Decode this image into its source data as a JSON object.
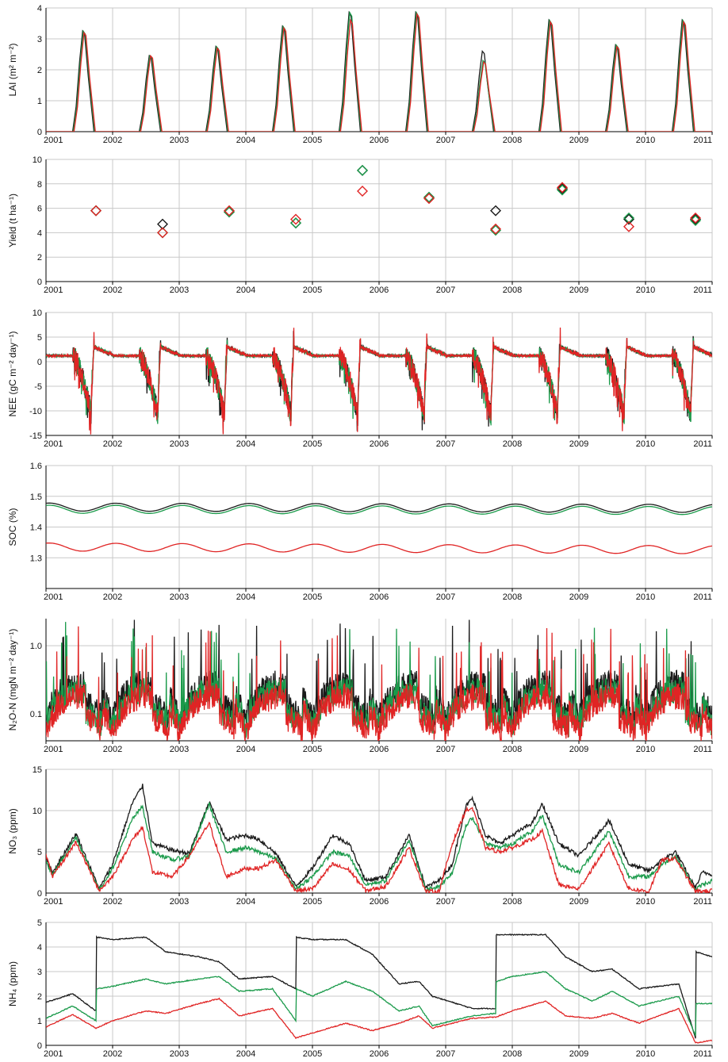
{
  "colors": {
    "black": "#1a1a1a",
    "green": "#1a9a4a",
    "red": "#e02424",
    "grid": "#c8c8c8",
    "axis": "#000000"
  },
  "x_axis": {
    "range": [
      2001,
      2011
    ],
    "tick_labels": [
      "2001",
      "2002",
      "2003",
      "2004",
      "2005",
      "2006",
      "2007",
      "2008",
      "2009",
      "2010",
      "2011"
    ]
  },
  "chart_data": [
    {
      "id": "lai",
      "type": "line",
      "ylabel": "LAI (m² m⁻²)",
      "ylim": [
        0,
        4
      ],
      "yticks": [
        0,
        1,
        2,
        3,
        4
      ],
      "ytick_labels": [
        "0",
        "1",
        "2",
        "3",
        "4"
      ],
      "grid": true,
      "pattern": "lai",
      "peaks": {
        "black": [
          3.25,
          2.45,
          2.75,
          3.4,
          3.85,
          3.85,
          2.6,
          3.6,
          2.8,
          3.6
        ],
        "green": [
          3.25,
          2.45,
          2.75,
          3.4,
          3.85,
          3.85,
          2.3,
          3.6,
          2.8,
          3.6
        ],
        "red": [
          3.2,
          2.45,
          2.7,
          3.35,
          3.6,
          3.8,
          2.25,
          3.55,
          2.75,
          3.55
        ]
      },
      "series": [
        {
          "color_key": "black"
        },
        {
          "color_key": "green"
        },
        {
          "color_key": "red"
        }
      ]
    },
    {
      "id": "yield",
      "type": "scatter",
      "ylabel": "Yield (t ha⁻¹)",
      "ylim": [
        0,
        10
      ],
      "yticks": [
        0,
        2,
        4,
        6,
        8,
        10
      ],
      "ytick_labels": [
        "0",
        "2",
        "4",
        "6",
        "8",
        "10"
      ],
      "grid": true,
      "x": [
        2001.75,
        2002.75,
        2003.75,
        2004.75,
        2005.75,
        2006.75,
        2007.75,
        2008.75,
        2009.75,
        2010.75
      ],
      "series": [
        {
          "color_key": "black",
          "values": [
            5.8,
            4.7,
            5.7,
            4.8,
            9.1,
            6.9,
            5.8,
            7.6,
            5.1,
            5.1
          ]
        },
        {
          "color_key": "green",
          "values": [
            5.8,
            4.0,
            5.7,
            4.8,
            9.1,
            6.9,
            4.2,
            7.5,
            5.2,
            5.0
          ]
        },
        {
          "color_key": "red",
          "values": [
            5.8,
            4.0,
            5.8,
            5.1,
            7.4,
            6.8,
            4.3,
            7.7,
            4.5,
            5.2
          ]
        }
      ]
    },
    {
      "id": "nee",
      "type": "line",
      "ylabel": "NEE (gC m⁻² day⁻¹)",
      "ylim": [
        -15,
        10
      ],
      "yticks": [
        -15,
        -10,
        -5,
        0,
        5,
        10
      ],
      "ytick_labels": [
        "-15",
        "-10",
        "-5",
        "0",
        "5",
        "10"
      ],
      "grid": true,
      "pattern": "nee",
      "series": [
        {
          "color_key": "black"
        },
        {
          "color_key": "green"
        },
        {
          "color_key": "red"
        }
      ]
    },
    {
      "id": "soc",
      "type": "line",
      "ylabel": "SOC (%)",
      "ylim": [
        1.2,
        1.6
      ],
      "yticks": [
        1.3,
        1.4,
        1.5,
        1.6
      ],
      "ytick_labels": [
        "1.3",
        "1.4",
        "1.5",
        "1.6"
      ],
      "grid": true,
      "pattern": "soc",
      "series": [
        {
          "color_key": "black",
          "base": 1.465
        },
        {
          "color_key": "green",
          "base": 1.458
        },
        {
          "color_key": "red",
          "base": 1.335
        }
      ]
    },
    {
      "id": "n2o",
      "type": "line",
      "ylabel": "N₂O-N (mgN m⁻² day⁻¹)",
      "scale": "log",
      "ylim": [
        0.04,
        2.5
      ],
      "yticks": [
        0.1,
        1.0
      ],
      "ytick_labels": [
        "0.1",
        "1.0"
      ],
      "grid": true,
      "pattern": "n2o",
      "series": [
        {
          "color_key": "black"
        },
        {
          "color_key": "green"
        },
        {
          "color_key": "red"
        }
      ]
    },
    {
      "id": "no3",
      "type": "line",
      "ylabel": "NO₃ (ppm)",
      "ylim": [
        0,
        15
      ],
      "yticks": [
        0,
        5,
        10,
        15
      ],
      "ytick_labels": [
        "0",
        "5",
        "10",
        "15"
      ],
      "grid": true,
      "pattern": "no3",
      "series": [
        {
          "color_key": "black",
          "x": [
            2001,
            2001.1,
            2001.45,
            2001.8,
            2002.0,
            2002.3,
            2002.45,
            2002.6,
            2002.9,
            2003.15,
            2003.45,
            2003.7,
            2004.0,
            2004.2,
            2004.45,
            2004.75,
            2005.0,
            2005.3,
            2005.55,
            2005.8,
            2006.1,
            2006.45,
            2006.7,
            2006.9,
            2007.1,
            2007.3,
            2007.4,
            2007.6,
            2007.8,
            2008.0,
            2008.3,
            2008.45,
            2008.7,
            2009.0,
            2009.45,
            2009.75,
            2010.05,
            2010.25,
            2010.45,
            2010.75,
            2010.85,
            2011.0
          ],
          "values": [
            4.2,
            2.5,
            7.2,
            0.5,
            3.5,
            11.0,
            13.0,
            6.0,
            5.2,
            4.8,
            11.0,
            6.5,
            7.0,
            6.5,
            4.8,
            0.8,
            3.0,
            7.0,
            6.0,
            1.5,
            2.0,
            7.0,
            0.7,
            1.5,
            3.5,
            10.5,
            11.5,
            7.0,
            6.0,
            7.0,
            8.5,
            10.8,
            6.0,
            4.5,
            8.8,
            3.5,
            2.7,
            4.0,
            5.0,
            0.6,
            2.5,
            2.3
          ]
        },
        {
          "color_key": "green",
          "x": [
            2001,
            2001.1,
            2001.45,
            2001.8,
            2002.0,
            2002.3,
            2002.45,
            2002.6,
            2002.9,
            2003.15,
            2003.45,
            2003.7,
            2004.0,
            2004.2,
            2004.45,
            2004.75,
            2005.0,
            2005.3,
            2005.55,
            2005.8,
            2006.1,
            2006.45,
            2006.7,
            2006.9,
            2007.1,
            2007.3,
            2007.4,
            2007.6,
            2007.8,
            2008.0,
            2008.3,
            2008.45,
            2008.7,
            2009.0,
            2009.45,
            2009.75,
            2010.05,
            2010.25,
            2010.45,
            2010.75,
            2010.85,
            2011.0
          ],
          "values": [
            3.8,
            2.2,
            6.8,
            0.4,
            3.0,
            9.0,
            10.5,
            5.0,
            4.0,
            4.5,
            10.8,
            5.0,
            5.5,
            5.0,
            4.2,
            0.5,
            2.0,
            5.0,
            4.5,
            1.0,
            1.5,
            6.5,
            0.4,
            0.8,
            2.5,
            8.0,
            9.2,
            6.0,
            5.5,
            6.0,
            7.5,
            9.5,
            3.5,
            2.5,
            7.5,
            2.0,
            2.0,
            3.5,
            4.5,
            0.4,
            1.0,
            1.5
          ]
        },
        {
          "color_key": "red",
          "x": [
            2001,
            2001.1,
            2001.45,
            2001.8,
            2002.0,
            2002.3,
            2002.45,
            2002.6,
            2002.9,
            2003.15,
            2003.45,
            2003.7,
            2004.0,
            2004.2,
            2004.45,
            2004.75,
            2005.0,
            2005.3,
            2005.55,
            2005.8,
            2006.1,
            2006.45,
            2006.7,
            2006.9,
            2007.1,
            2007.3,
            2007.4,
            2007.6,
            2007.8,
            2008.0,
            2008.3,
            2008.45,
            2008.7,
            2009.0,
            2009.45,
            2009.75,
            2010.05,
            2010.25,
            2010.45,
            2010.75,
            2010.85,
            2011.0
          ],
          "values": [
            4.6,
            2.0,
            6.2,
            0.3,
            2.0,
            6.5,
            8.0,
            2.5,
            2.0,
            4.5,
            8.5,
            2.0,
            3.0,
            3.0,
            4.0,
            0.3,
            0.5,
            3.5,
            2.8,
            0.3,
            0.8,
            5.5,
            0.2,
            0.2,
            6.0,
            10.0,
            10.3,
            5.5,
            5.0,
            5.5,
            6.5,
            7.5,
            1.0,
            0.5,
            6.0,
            0.5,
            0.2,
            4.0,
            4.2,
            0.2,
            0.2,
            0.3
          ]
        }
      ]
    },
    {
      "id": "nh4",
      "type": "line",
      "ylabel": "NH₄ (ppm)",
      "ylim": [
        0,
        5
      ],
      "yticks": [
        0,
        1,
        2,
        3,
        4,
        5
      ],
      "ytick_labels": [
        "0",
        "1",
        "2",
        "3",
        "4",
        "5"
      ],
      "grid": true,
      "pattern": "nh4",
      "series": [
        {
          "color_key": "black",
          "x": [
            2001,
            2001.4,
            2001.75,
            2001.76,
            2002.0,
            2002.5,
            2002.8,
            2003.3,
            2003.6,
            2003.9,
            2004.4,
            2004.75,
            2004.76,
            2005.0,
            2005.5,
            2005.9,
            2006.3,
            2006.6,
            2006.8,
            2007.4,
            2007.75,
            2007.76,
            2008.0,
            2008.5,
            2008.8,
            2009.2,
            2009.5,
            2009.9,
            2010.5,
            2010.75,
            2010.76,
            2011.0
          ],
          "values": [
            1.75,
            2.1,
            1.4,
            4.4,
            4.3,
            4.4,
            3.8,
            3.6,
            3.4,
            2.7,
            2.8,
            2.3,
            4.4,
            4.3,
            4.3,
            3.7,
            2.5,
            2.6,
            2.0,
            1.5,
            1.5,
            4.5,
            4.5,
            4.5,
            3.6,
            3.0,
            3.1,
            2.3,
            2.5,
            0.3,
            3.8,
            3.6
          ]
        },
        {
          "color_key": "green",
          "x": [
            2001,
            2001.4,
            2001.75,
            2001.76,
            2002.0,
            2002.5,
            2002.8,
            2003.3,
            2003.6,
            2003.9,
            2004.4,
            2004.75,
            2004.76,
            2005.0,
            2005.5,
            2005.9,
            2006.3,
            2006.6,
            2006.8,
            2007.4,
            2007.75,
            2007.76,
            2008.0,
            2008.5,
            2008.8,
            2009.2,
            2009.5,
            2009.9,
            2010.5,
            2010.75,
            2010.76,
            2011.0
          ],
          "values": [
            1.1,
            1.6,
            1.0,
            2.3,
            2.4,
            2.7,
            2.5,
            2.7,
            2.8,
            2.2,
            2.3,
            1.0,
            2.3,
            2.0,
            2.6,
            2.2,
            1.4,
            1.6,
            0.8,
            1.2,
            1.3,
            2.6,
            2.8,
            3.0,
            2.3,
            1.8,
            2.2,
            1.6,
            2.0,
            0.4,
            1.7,
            1.7
          ]
        },
        {
          "color_key": "red",
          "x": [
            2001,
            2001.4,
            2001.75,
            2002.0,
            2002.5,
            2002.8,
            2003.3,
            2003.6,
            2003.9,
            2004.4,
            2004.75,
            2005.0,
            2005.5,
            2005.9,
            2006.3,
            2006.6,
            2006.8,
            2007.4,
            2007.75,
            2008.0,
            2008.5,
            2008.8,
            2009.2,
            2009.5,
            2009.9,
            2010.5,
            2010.75,
            2011.0
          ],
          "values": [
            0.75,
            1.25,
            0.7,
            1.0,
            1.4,
            1.3,
            1.7,
            1.9,
            1.2,
            1.5,
            0.3,
            0.5,
            0.9,
            0.6,
            0.9,
            1.2,
            0.7,
            1.1,
            1.15,
            1.4,
            1.8,
            1.2,
            1.1,
            1.3,
            0.9,
            1.5,
            0.1,
            0.2
          ]
        }
      ]
    }
  ]
}
